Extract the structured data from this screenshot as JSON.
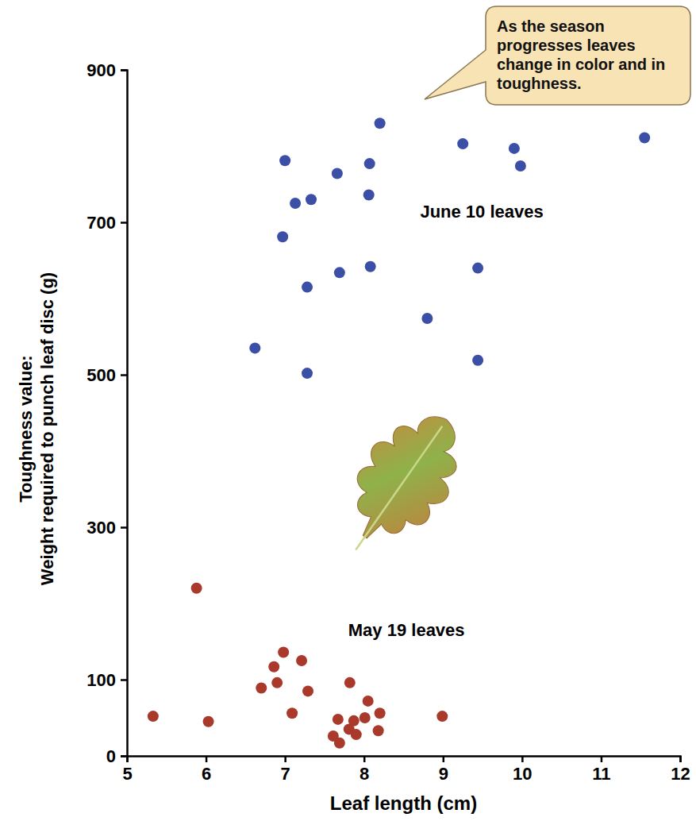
{
  "chart_data": {
    "type": "scatter",
    "x_label": "Leaf length (cm)",
    "y_label": [
      "Toughness value:",
      "Weight required to punch leaf disc (g)"
    ],
    "annotation": "As the season progresses leaves change in color and in toughness.",
    "xlim": [
      5,
      12
    ],
    "xticks": [
      5,
      6,
      7,
      8,
      9,
      10,
      11,
      12
    ],
    "ylim": [
      0,
      900
    ],
    "yticks": [
      0,
      100,
      300,
      500,
      700,
      900
    ],
    "grid": false,
    "series": [
      {
        "name": "June 10 leaves",
        "color": "#3b4fa6",
        "marker": "circle",
        "x": [
          7.0,
          8.2,
          9.25,
          9.9,
          9.98,
          11.55,
          7.66,
          8.07,
          7.13,
          7.33,
          8.06,
          6.97,
          7.28,
          7.69,
          8.08,
          9.44,
          8.8,
          6.62,
          7.28,
          9.44
        ],
        "values": [
          781,
          830,
          803,
          797,
          774,
          811,
          764,
          777,
          725,
          730,
          736,
          681,
          615,
          634,
          642,
          640,
          574,
          535,
          502,
          519
        ]
      },
      {
        "name": "May 19 leaves",
        "color": "#a8392b",
        "marker": "circle",
        "x": [
          5.88,
          5.33,
          6.03,
          6.98,
          6.86,
          6.9,
          7.21,
          6.7,
          7.29,
          7.09,
          7.82,
          8.05,
          8.2,
          7.67,
          7.87,
          8.01,
          7.81,
          7.61,
          7.9,
          7.69,
          8.18,
          8.99
        ],
        "values": [
          220,
          52,
          45,
          136,
          117,
          96,
          125,
          89,
          85,
          56,
          96,
          72,
          56,
          48,
          46,
          50,
          35,
          26,
          28,
          17,
          33,
          52
        ]
      }
    ]
  }
}
